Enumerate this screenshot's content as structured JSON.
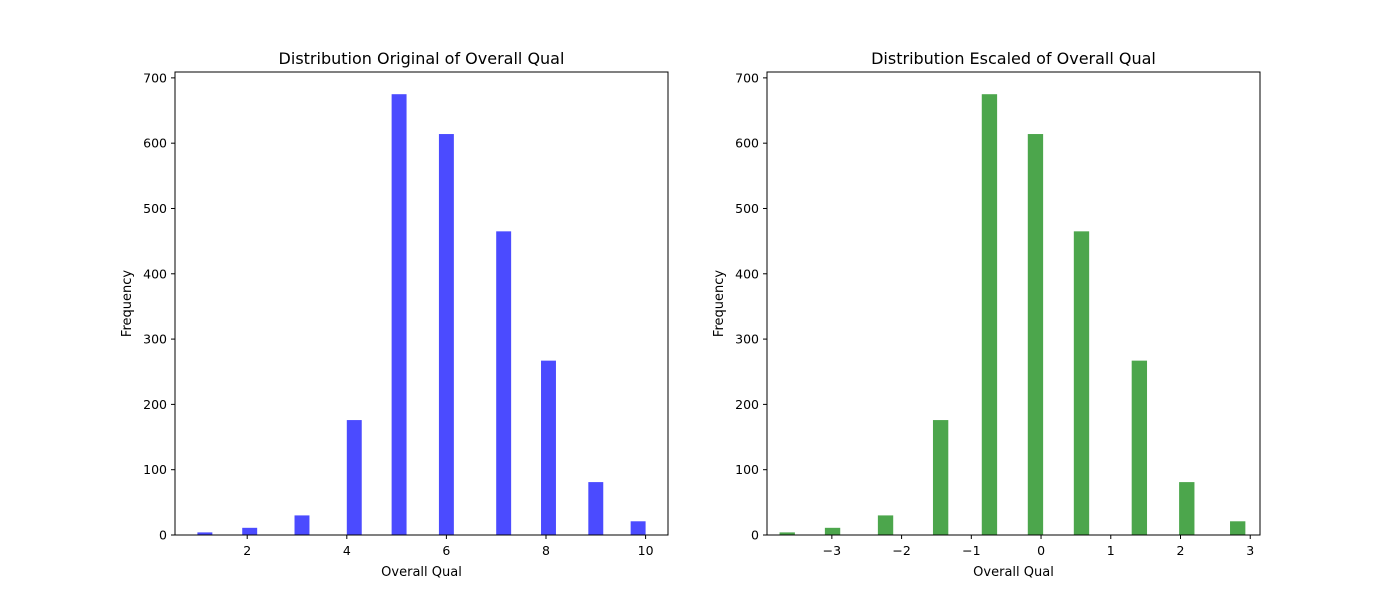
{
  "chart_data": [
    {
      "type": "bar",
      "title": "Distribution Original of Overall Qual",
      "xlabel": "Overall Qual",
      "ylabel": "Frequency",
      "xlim": [
        0.55,
        10.45
      ],
      "ylim": [
        0,
        709
      ],
      "xticks": [
        2,
        4,
        6,
        8,
        10
      ],
      "xtick_labels": [
        "2",
        "4",
        "6",
        "8",
        "10"
      ],
      "yticks": [
        0,
        100,
        200,
        300,
        400,
        500,
        600,
        700
      ],
      "ytick_labels": [
        "0",
        "100",
        "200",
        "300",
        "400",
        "500",
        "600",
        "700"
      ],
      "bar_width": 0.3,
      "bar_color": "#4b4bff",
      "x": [
        1.15,
        2.05,
        3.1,
        4.15,
        5.05,
        6.0,
        7.15,
        8.05,
        9.0,
        9.85
      ],
      "values": [
        4,
        11,
        30,
        176,
        675,
        614,
        465,
        267,
        81,
        21
      ]
    },
    {
      "type": "bar",
      "title": "Distribution Escaled of Overall Qual",
      "xlabel": "Overall Qual",
      "ylabel": "Frequency",
      "xlim": [
        -3.93,
        3.14
      ],
      "ylim": [
        0,
        709
      ],
      "xticks": [
        -3,
        -2,
        -1,
        0,
        1,
        2,
        3
      ],
      "xtick_labels": [
        "−3",
        "−2",
        "−1",
        "0",
        "1",
        "2",
        "3"
      ],
      "yticks": [
        0,
        100,
        200,
        300,
        400,
        500,
        600,
        700
      ],
      "ytick_labels": [
        "0",
        "100",
        "200",
        "300",
        "400",
        "500",
        "600",
        "700"
      ],
      "bar_width": 0.22,
      "bar_color": "#4ca64c",
      "x": [
        -3.64,
        -2.99,
        -2.23,
        -1.44,
        -0.74,
        -0.08,
        0.58,
        1.41,
        2.09,
        2.82
      ],
      "values": [
        4,
        11,
        30,
        176,
        675,
        614,
        465,
        267,
        81,
        21
      ]
    }
  ]
}
